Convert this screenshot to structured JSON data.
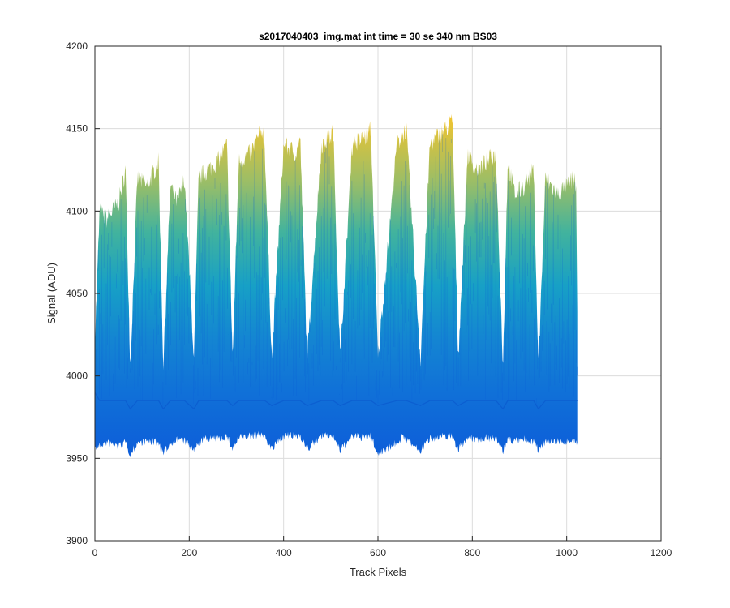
{
  "chart_data": {
    "type": "area",
    "title": "s2017040403_img.mat int time = 30 se  340 nm BS03",
    "xlabel": "Track Pixels",
    "ylabel": "Signal (ADU)",
    "xlim": [
      0,
      1200
    ],
    "ylim": [
      3900,
      4200
    ],
    "xticks": [
      0,
      200,
      400,
      600,
      800,
      1000,
      1200
    ],
    "yticks": [
      3900,
      3950,
      4000,
      4050,
      4100,
      4150,
      4200
    ],
    "xtick_labels": [
      "0",
      "200",
      "400",
      "600",
      "800",
      "1000",
      "1200"
    ],
    "ytick_labels": [
      "3900",
      "3950",
      "4000",
      "4050",
      "4100",
      "4150",
      "4200"
    ],
    "grid": true,
    "colormap": [
      "#0d5ed9",
      "#1578d4",
      "#169dc9",
      "#3cb3a4",
      "#8fbd6d",
      "#f0c430"
    ],
    "series": [
      {
        "x": [
          0,
          10,
          25,
          50,
          65,
          75,
          90,
          110,
          135,
          145,
          160,
          175,
          190,
          210,
          220,
          240,
          260,
          280,
          292,
          305,
          330,
          355,
          360,
          375,
          400,
          428,
          435,
          450,
          480,
          500,
          505,
          520,
          545,
          575,
          585,
          600,
          640,
          650,
          660,
          690,
          710,
          725,
          745,
          758,
          770,
          790,
          810,
          830,
          850,
          865,
          875,
          890,
          910,
          930,
          940,
          955,
          980,
          1000,
          1015,
          1020,
          1023
        ],
        "upper": [
          4020,
          4100,
          4095,
          4105,
          4125,
          4005,
          4120,
          4115,
          4130,
          4005,
          4115,
          4105,
          4120,
          4010,
          4120,
          4125,
          4130,
          4140,
          4010,
          4130,
          4135,
          4150,
          4140,
          4010,
          4140,
          4135,
          4145,
          4010,
          4140,
          4145,
          4150,
          4010,
          4140,
          4145,
          4150,
          4010,
          4140,
          4145,
          4150,
          4010,
          4140,
          4145,
          4150,
          4155,
          4010,
          4135,
          4125,
          4130,
          4135,
          4005,
          4130,
          4110,
          4115,
          4125,
          4005,
          4120,
          4110,
          4115,
          4120,
          4115,
          4015
        ],
        "median": [
          3990,
          3985,
          3985,
          3985,
          3985,
          3980,
          3985,
          3985,
          3985,
          3980,
          3985,
          3985,
          3985,
          3980,
          3985,
          3985,
          3985,
          3985,
          3982,
          3985,
          3985,
          3985,
          3985,
          3982,
          3985,
          3985,
          3985,
          3982,
          3985,
          3985,
          3985,
          3982,
          3985,
          3985,
          3985,
          3982,
          3985,
          3985,
          3985,
          3982,
          3985,
          3985,
          3985,
          3985,
          3982,
          3985,
          3985,
          3985,
          3985,
          3980,
          3985,
          3985,
          3985,
          3985,
          3980,
          3985,
          3985,
          3985,
          3985,
          3985,
          3985
        ],
        "lower": [
          3958,
          3960,
          3962,
          3960,
          3962,
          3955,
          3962,
          3963,
          3962,
          3955,
          3962,
          3964,
          3963,
          3957,
          3962,
          3965,
          3964,
          3966,
          3958,
          3965,
          3966,
          3967,
          3966,
          3958,
          3966,
          3966,
          3967,
          3958,
          3966,
          3966,
          3967,
          3957,
          3966,
          3965,
          3966,
          3955,
          3962,
          3965,
          3964,
          3957,
          3965,
          3965,
          3966,
          3966,
          3958,
          3965,
          3964,
          3965,
          3964,
          3957,
          3964,
          3963,
          3964,
          3963,
          3957,
          3963,
          3963,
          3963,
          3962,
          3962,
          3960
        ]
      }
    ]
  }
}
